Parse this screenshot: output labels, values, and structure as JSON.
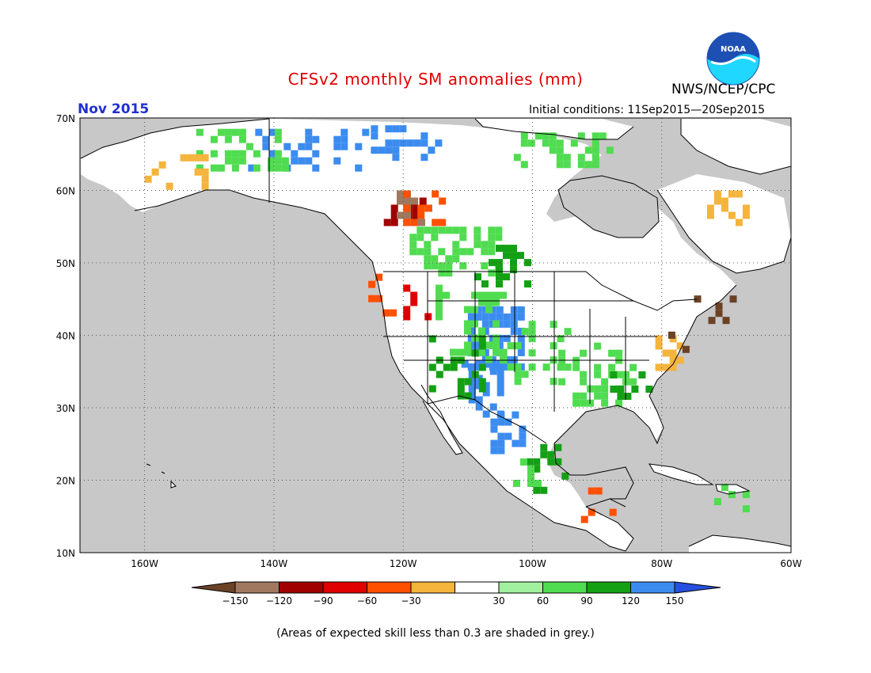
{
  "title": "CFSv2 monthly SM anomalies (mm)",
  "period": "Nov 2015",
  "initial_conditions": "Initial conditions: 11Sep2015—20Sep2015",
  "agency": "NWS/NCEP/CPC",
  "logo_text": "NOAA",
  "footnote": "(Areas of expected skill less than 0.3 are shaded in grey.)",
  "map": {
    "lat_range": [
      10,
      70
    ],
    "lon_range": [
      -170,
      -60
    ],
    "lat_ticks": [
      "10N",
      "20N",
      "30N",
      "40N",
      "50N",
      "60N",
      "70N"
    ],
    "lon_ticks": [
      "160W",
      "140W",
      "120W",
      "100W",
      "80W",
      "60W"
    ],
    "masked_color": "#c8c8c8",
    "neutral_color": "#ffffff"
  },
  "legend": {
    "labels": [
      "-150",
      "-120",
      "-90",
      "-60",
      "-30",
      "30",
      "60",
      "90",
      "120",
      "150"
    ],
    "colors": [
      "#6b4226",
      "#a07860",
      "#a00000",
      "#e00000",
      "#ff5000",
      "#f5b43c",
      "#ffffff",
      "#a0f0a0",
      "#50dc50",
      "#14a014",
      "#3c8cf0",
      "#2850e0"
    ]
  },
  "colors": {
    "title": "#e00000",
    "period": "#2030d0",
    "logo_blue": "#1e50b4",
    "logo_cyan": "#20d8ff"
  }
}
